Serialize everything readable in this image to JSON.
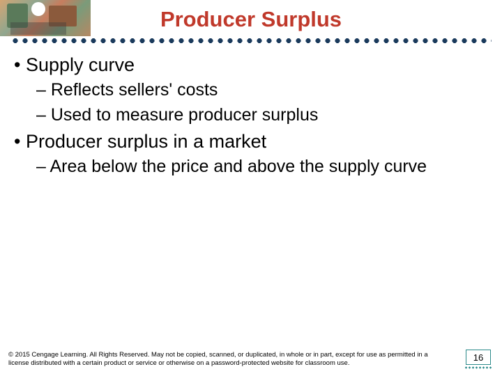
{
  "title": "Producer Surplus",
  "bullets": [
    {
      "level": 1,
      "text": "• Supply curve"
    },
    {
      "level": 2,
      "text": "– Reflects sellers' costs"
    },
    {
      "level": 2,
      "text": "– Used to measure producer surplus"
    },
    {
      "level": 1,
      "text": "• Producer surplus in a market"
    },
    {
      "level": 2,
      "text": "– Area below the price and above the supply curve"
    }
  ],
  "footer": "© 2015 Cengage Learning. All Rights Reserved. May not be copied, scanned, or duplicated, in whole or in part, except for use as permitted in a license distributed with a certain product or service or otherwise on a password-protected website for classroom use.",
  "page_number": "16",
  "colors": {
    "title_color": "#c0392b",
    "dot_color": "#1a3a5c",
    "text_color": "#000000",
    "page_border": "#2a8a8a",
    "background": "#ffffff"
  },
  "fonts": {
    "title_size": 31,
    "bullet1_size": 27,
    "bullet2_size": 25,
    "footer_size": 9.5
  }
}
